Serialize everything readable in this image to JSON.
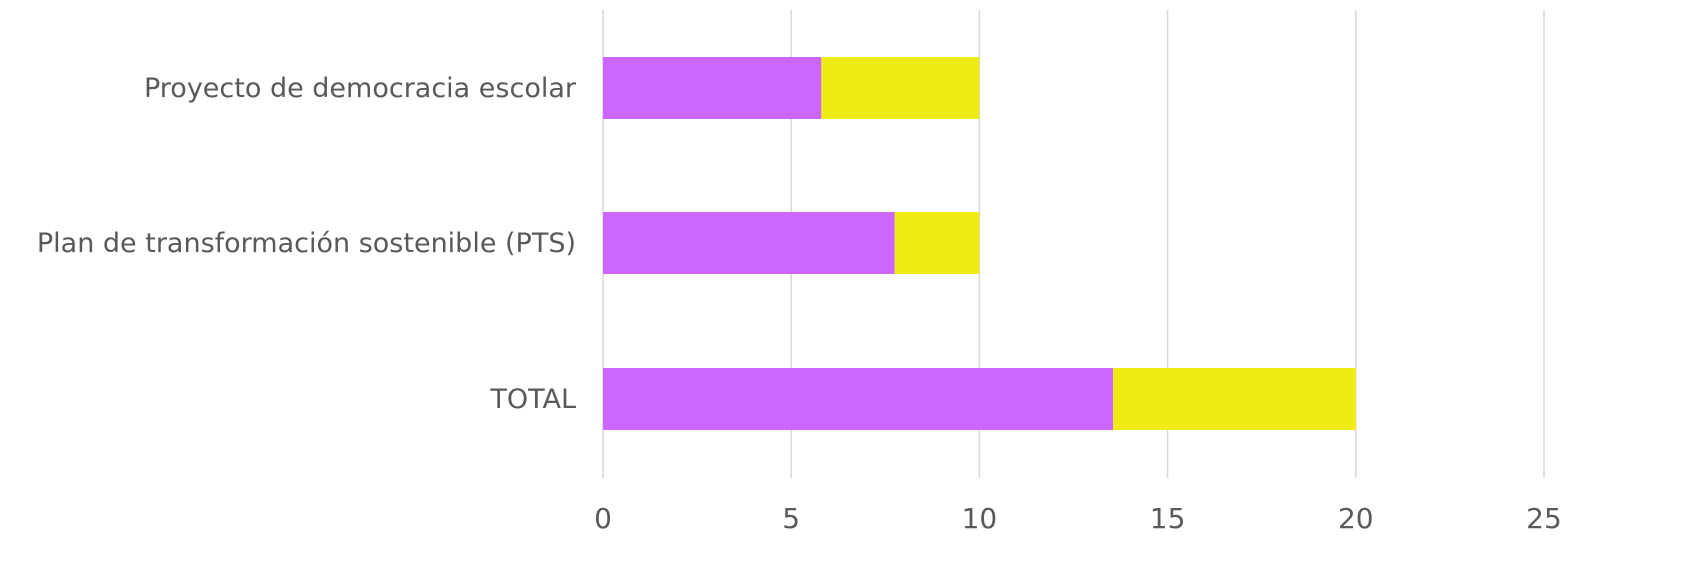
{
  "chart_data": {
    "type": "bar",
    "orientation": "horizontal",
    "stacked": true,
    "categories": [
      "Proyecto de democracia escolar",
      "Plan de transformación sostenible (PTS)",
      "TOTAL"
    ],
    "series": [
      {
        "color": "#cc66ff",
        "values": [
          5.8,
          7.75,
          13.55
        ]
      },
      {
        "color": "#f0eb14",
        "values": [
          4.2,
          2.25,
          6.45
        ]
      }
    ],
    "xlim": [
      0,
      25
    ],
    "x_ticks": [
      "0",
      "5",
      "10",
      "15",
      "20",
      "25"
    ],
    "title": "",
    "xlabel": "",
    "ylabel": "",
    "grid": true,
    "legend": "none"
  }
}
